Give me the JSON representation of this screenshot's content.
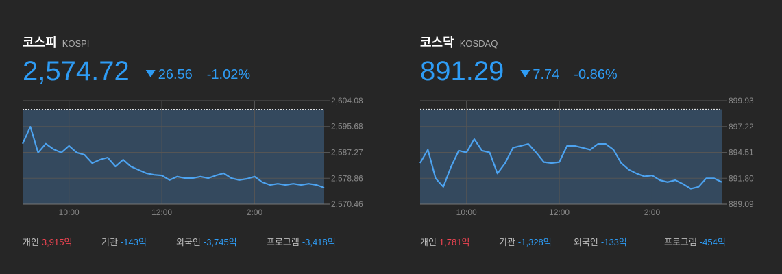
{
  "panels": [
    {
      "name": "코스피",
      "code": "KOSPI",
      "price": "2,574.72",
      "change": "26.56",
      "change_pct": "-1.02%",
      "flows": [
        {
          "label": "개인",
          "value": "3,915억"
        },
        {
          "label": "기관",
          "value": "-143억"
        },
        {
          "label": "외국인",
          "value": "-3,745억"
        },
        {
          "label": "프로그램",
          "value": "-3,418억"
        }
      ]
    },
    {
      "name": "코스닥",
      "code": "KOSDAQ",
      "price": "891.29",
      "change": "7.74",
      "change_pct": "-0.86%",
      "flows": [
        {
          "label": "개인",
          "value": "1,781억"
        },
        {
          "label": "기관",
          "value": "-1,328억"
        },
        {
          "label": "외국인",
          "value": "-133억"
        },
        {
          "label": "프로그램",
          "value": "-454억"
        }
      ]
    }
  ],
  "chart_data": [
    {
      "type": "line",
      "color": "#4da3f0",
      "x": [
        540,
        550,
        560,
        570,
        580,
        590,
        600,
        610,
        620,
        630,
        640,
        650,
        660,
        670,
        680,
        690,
        700,
        710,
        720,
        730,
        740,
        750,
        760,
        770,
        780,
        790,
        800,
        810,
        820,
        830,
        840,
        850,
        860,
        870,
        880,
        890,
        900,
        910,
        920,
        930
      ],
      "values": [
        2590.1,
        2595.6,
        2587.2,
        2590.1,
        2588.3,
        2587.2,
        2589.4,
        2587.2,
        2586.5,
        2583.8,
        2584.9,
        2585.6,
        2582.7,
        2584.9,
        2582.7,
        2581.6,
        2580.5,
        2580.0,
        2579.8,
        2578.3,
        2579.4,
        2578.9,
        2578.9,
        2579.4,
        2578.9,
        2579.8,
        2580.5,
        2578.9,
        2578.3,
        2578.7,
        2579.4,
        2577.6,
        2576.7,
        2577.1,
        2576.7,
        2577.1,
        2576.7,
        2577.1,
        2576.7,
        2575.8
      ],
      "reference_line": 2601.28,
      "xlim": [
        540,
        930
      ],
      "xticks": [
        {
          "value": 600,
          "label": "10:00"
        },
        {
          "value": 720,
          "label": "12:00"
        },
        {
          "value": 840,
          "label": "2:00"
        }
      ],
      "ylim": [
        2570.46,
        2604.08
      ],
      "yticks": [
        {
          "value": 2570.46,
          "label": "2,570.46"
        },
        {
          "value": 2578.86,
          "label": "2,578.86"
        },
        {
          "value": 2587.27,
          "label": "2,587.27"
        },
        {
          "value": 2595.68,
          "label": "2,595.68"
        },
        {
          "value": 2604.08,
          "label": "2,604.08"
        }
      ],
      "grid": true
    },
    {
      "type": "line",
      "color": "#4da3f0",
      "x": [
        540,
        550,
        560,
        570,
        580,
        590,
        600,
        610,
        620,
        630,
        640,
        650,
        660,
        670,
        680,
        690,
        700,
        710,
        720,
        730,
        740,
        750,
        760,
        770,
        780,
        790,
        800,
        810,
        820,
        830,
        840,
        850,
        860,
        870,
        880,
        890,
        900,
        910,
        920,
        930
      ],
      "values": [
        893.4,
        894.8,
        891.8,
        890.9,
        893.0,
        894.7,
        894.5,
        895.9,
        894.7,
        894.5,
        892.3,
        893.4,
        895.0,
        895.2,
        895.4,
        894.5,
        893.5,
        893.4,
        893.5,
        895.2,
        895.2,
        895.0,
        894.8,
        895.4,
        895.4,
        894.8,
        893.4,
        892.7,
        892.3,
        892.0,
        892.1,
        891.6,
        891.4,
        891.6,
        891.2,
        890.7,
        890.9,
        891.8,
        891.8,
        891.4
      ],
      "reference_line": 899.03,
      "xlim": [
        540,
        930
      ],
      "xticks": [
        {
          "value": 600,
          "label": "10:00"
        },
        {
          "value": 720,
          "label": "12:00"
        },
        {
          "value": 840,
          "label": "2:00"
        }
      ],
      "ylim": [
        889.09,
        899.93
      ],
      "yticks": [
        {
          "value": 889.09,
          "label": "889.09"
        },
        {
          "value": 891.8,
          "label": "891.80"
        },
        {
          "value": 894.51,
          "label": "894.51"
        },
        {
          "value": 897.22,
          "label": "897.22"
        },
        {
          "value": 899.93,
          "label": "899.93"
        }
      ],
      "grid": true
    }
  ]
}
